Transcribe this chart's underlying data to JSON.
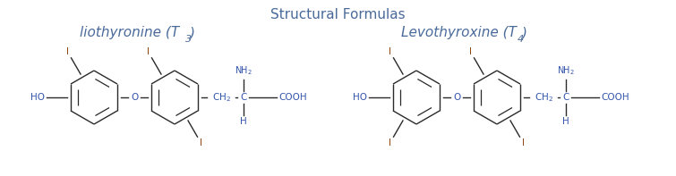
{
  "title": "Structural Formulas",
  "title_color": "#4a6a9a",
  "title_fontsize": 11,
  "line_color": "#2a2a2a",
  "blue": "#3355aa",
  "brown": "#8B4513",
  "fs": 7.5,
  "fs_name": 11,
  "bg": "#ffffff",
  "t3_label": "liothyronine (T",
  "t3_sub": "3",
  "t4_label": "Levothyroxine (T",
  "t4_sub": "4"
}
